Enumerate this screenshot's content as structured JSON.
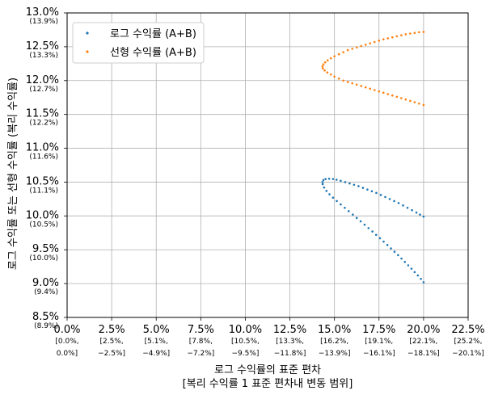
{
  "chart_data": {
    "type": "scatter",
    "xlabel": "로그 수익률의 표준 편차",
    "xlabel_sub": "[복리 수익률 1 표준 편차내 변동 범위]",
    "ylabel": "로그 수익률 또는 선형 수익률 (복리 수익률)",
    "xlim": [
      0.0,
      22.5
    ],
    "ylim": [
      8.5,
      13.0
    ],
    "grid": true,
    "legend_position": "top-left",
    "x_ticks": [
      {
        "value": 0.0,
        "label": "0.0%",
        "sub1": "[0.0%,",
        "sub2": "0.0%]"
      },
      {
        "value": 2.5,
        "label": "2.5%",
        "sub1": "[2.5%,",
        "sub2": "−2.5%]"
      },
      {
        "value": 5.0,
        "label": "5.0%",
        "sub1": "[5.1%,",
        "sub2": "−4.9%]"
      },
      {
        "value": 7.5,
        "label": "7.5%",
        "sub1": "[7.8%,",
        "sub2": "−7.2%]"
      },
      {
        "value": 10.0,
        "label": "10.0%",
        "sub1": "[10.5%,",
        "sub2": "−9.5%]"
      },
      {
        "value": 12.5,
        "label": "12.5%",
        "sub1": "[13.3%,",
        "sub2": "−11.8%]"
      },
      {
        "value": 15.0,
        "label": "15.0%",
        "sub1": "[16.2%,",
        "sub2": "−13.9%]"
      },
      {
        "value": 17.5,
        "label": "17.5%",
        "sub1": "[19.1%,",
        "sub2": "−16.1%]"
      },
      {
        "value": 20.0,
        "label": "20.0%",
        "sub1": "[22.1%,",
        "sub2": "−18.1%]"
      },
      {
        "value": 22.5,
        "label": "22.5%",
        "sub1": "[25.2%,",
        "sub2": "−20.1%]"
      }
    ],
    "y_ticks": [
      {
        "value": 13.0,
        "label": "13.0%",
        "sub": "(13.9%)"
      },
      {
        "value": 12.5,
        "label": "12.5%",
        "sub": "(13.3%)"
      },
      {
        "value": 12.0,
        "label": "12.0%",
        "sub": "(12.7%)"
      },
      {
        "value": 11.5,
        "label": "11.5%",
        "sub": "(12.2%)"
      },
      {
        "value": 11.0,
        "label": "11.0%",
        "sub": "(11.6%)"
      },
      {
        "value": 10.5,
        "label": "10.5%",
        "sub": "(11.1%)"
      },
      {
        "value": 10.0,
        "label": "10.0%",
        "sub": "(10.5%)"
      },
      {
        "value": 9.5,
        "label": "9.5%",
        "sub": "(10.0%)"
      },
      {
        "value": 9.0,
        "label": "9.0%",
        "sub": "(9.4%)"
      },
      {
        "value": 8.5,
        "label": "8.5%",
        "sub": "(8.9%)"
      }
    ],
    "series": [
      {
        "name": "로그 수익률 (A+B)",
        "color": "#1f77b4",
        "points": [
          [
            20.0,
            9.02
          ],
          [
            19.85,
            9.07
          ],
          [
            19.68,
            9.12
          ],
          [
            19.5,
            9.17
          ],
          [
            19.32,
            9.22
          ],
          [
            19.14,
            9.27
          ],
          [
            18.95,
            9.32
          ],
          [
            18.76,
            9.37
          ],
          [
            18.57,
            9.42
          ],
          [
            18.37,
            9.47
          ],
          [
            18.17,
            9.52
          ],
          [
            17.97,
            9.57
          ],
          [
            17.76,
            9.62
          ],
          [
            17.55,
            9.67
          ],
          [
            17.34,
            9.72
          ],
          [
            17.13,
            9.77
          ],
          [
            16.91,
            9.82
          ],
          [
            16.69,
            9.87
          ],
          [
            16.47,
            9.92
          ],
          [
            16.25,
            9.97
          ],
          [
            16.03,
            10.02
          ],
          [
            15.8,
            10.07
          ],
          [
            15.58,
            10.12
          ],
          [
            15.35,
            10.17
          ],
          [
            15.13,
            10.22
          ],
          [
            14.92,
            10.27
          ],
          [
            14.72,
            10.32
          ],
          [
            14.55,
            10.37
          ],
          [
            14.42,
            10.42
          ],
          [
            14.34,
            10.47
          ],
          [
            14.33,
            10.5
          ],
          [
            14.38,
            10.53
          ],
          [
            14.5,
            10.545
          ],
          [
            14.7,
            10.55
          ],
          [
            14.92,
            10.545
          ],
          [
            15.12,
            10.535
          ],
          [
            15.35,
            10.52
          ],
          [
            15.6,
            10.5
          ],
          [
            15.85,
            10.48
          ],
          [
            16.1,
            10.46
          ],
          [
            16.35,
            10.44
          ],
          [
            16.6,
            10.415
          ],
          [
            16.85,
            10.39
          ],
          [
            17.1,
            10.365
          ],
          [
            17.35,
            10.34
          ],
          [
            17.6,
            10.31
          ],
          [
            17.85,
            10.28
          ],
          [
            18.1,
            10.25
          ],
          [
            18.35,
            10.22
          ],
          [
            18.6,
            10.19
          ],
          [
            18.85,
            10.155
          ],
          [
            19.1,
            10.12
          ],
          [
            19.35,
            10.085
          ],
          [
            19.6,
            10.05
          ],
          [
            19.8,
            10.02
          ],
          [
            20.0,
            9.99
          ]
        ]
      },
      {
        "name": "선형 수익률 (A+B)",
        "color": "#ff7f0e",
        "points": [
          [
            20.0,
            11.64
          ],
          [
            19.75,
            11.66
          ],
          [
            19.5,
            11.68
          ],
          [
            19.25,
            11.7
          ],
          [
            19.0,
            11.72
          ],
          [
            18.75,
            11.74
          ],
          [
            18.5,
            11.76
          ],
          [
            18.25,
            11.78
          ],
          [
            18.0,
            11.8
          ],
          [
            17.75,
            11.82
          ],
          [
            17.5,
            11.84
          ],
          [
            17.25,
            11.86
          ],
          [
            17.0,
            11.88
          ],
          [
            16.75,
            11.9
          ],
          [
            16.5,
            11.92
          ],
          [
            16.25,
            11.94
          ],
          [
            16.0,
            11.96
          ],
          [
            15.75,
            11.98
          ],
          [
            15.5,
            12.0
          ],
          [
            15.25,
            12.03
          ],
          [
            15.0,
            12.06
          ],
          [
            14.8,
            12.09
          ],
          [
            14.6,
            12.12
          ],
          [
            14.45,
            12.15
          ],
          [
            14.35,
            12.18
          ],
          [
            14.33,
            12.21
          ],
          [
            14.38,
            12.24
          ],
          [
            14.48,
            12.27
          ],
          [
            14.62,
            12.3
          ],
          [
            14.8,
            12.33
          ],
          [
            15.0,
            12.36
          ],
          [
            15.25,
            12.39
          ],
          [
            15.5,
            12.42
          ],
          [
            15.75,
            12.45
          ],
          [
            16.0,
            12.47
          ],
          [
            16.25,
            12.49
          ],
          [
            16.5,
            12.51
          ],
          [
            16.75,
            12.53
          ],
          [
            17.0,
            12.55
          ],
          [
            17.25,
            12.57
          ],
          [
            17.5,
            12.59
          ],
          [
            17.75,
            12.61
          ],
          [
            18.0,
            12.625
          ],
          [
            18.25,
            12.64
          ],
          [
            18.5,
            12.655
          ],
          [
            18.75,
            12.67
          ],
          [
            19.0,
            12.685
          ],
          [
            19.25,
            12.695
          ],
          [
            19.5,
            12.705
          ],
          [
            19.75,
            12.715
          ],
          [
            20.0,
            12.72
          ]
        ]
      }
    ]
  }
}
